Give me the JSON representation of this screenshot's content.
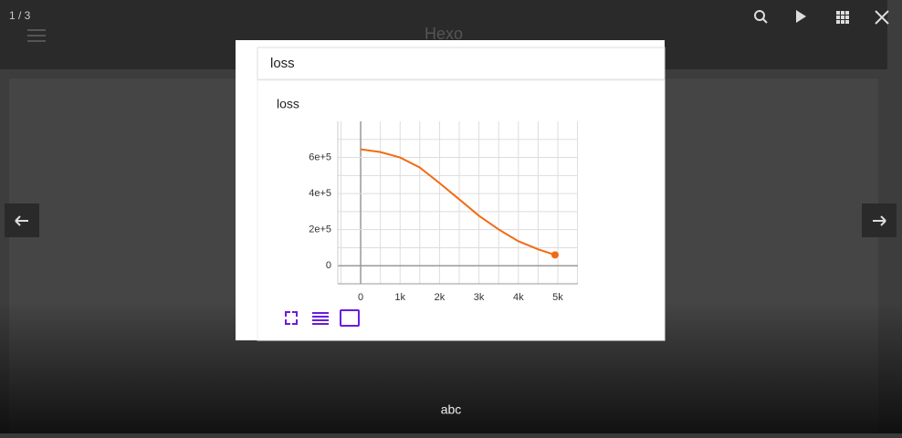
{
  "counter": "1 / 3",
  "blog_title": "Hexo",
  "card_title": "loss",
  "caption": "abc",
  "chart_data": {
    "type": "line",
    "title": "loss",
    "x": [
      0,
      500,
      1000,
      1500,
      2000,
      2500,
      3000,
      3500,
      4000,
      4500,
      4930
    ],
    "values": [
      645000,
      630000,
      600000,
      544000,
      458000,
      368000,
      277000,
      201000,
      136000,
      91000,
      60000
    ],
    "color": "#f26b12",
    "xlim": [
      -580,
      5510
    ],
    "ylim": [
      -100000,
      800000
    ],
    "xticks": [
      0,
      {
        "value": 1000,
        "label": "1k"
      },
      {
        "value": 2000,
        "label": "2k"
      },
      {
        "value": 3000,
        "label": "3k"
      },
      {
        "value": 4000,
        "label": "4k"
      },
      {
        "value": 5000,
        "label": "5k"
      }
    ],
    "yticks": [
      0,
      {
        "value": 200000,
        "label": "2e+5"
      },
      {
        "value": 400000,
        "label": "4e+5"
      },
      {
        "value": 600000,
        "label": "6e+5"
      }
    ],
    "xminor": [
      -500,
      500,
      1500,
      2500,
      3500,
      4500,
      5500
    ],
    "yminor": [
      -100000,
      100000,
      300000,
      500000,
      700000
    ],
    "grid": true
  }
}
